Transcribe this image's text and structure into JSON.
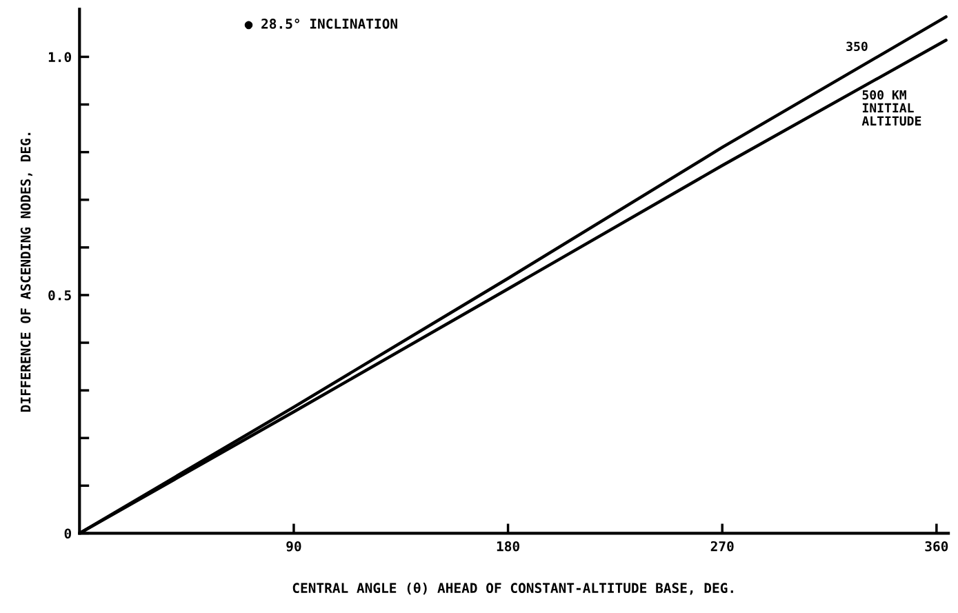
{
  "chart_data": {
    "type": "line",
    "xlabel": "CENTRAL ANGLE (θ) AHEAD OF CONSTANT-ALTITUDE BASE, DEG.",
    "ylabel": "DIFFERENCE OF ASCENDING NODES, DEG.",
    "annotations": [
      "● 28.5° INCLINATION"
    ],
    "series": [
      {
        "name": "350",
        "color": "#000000",
        "x": [
          0,
          90,
          180,
          270,
          364
        ],
        "values": [
          0,
          0.265,
          0.535,
          0.81,
          1.084
        ]
      },
      {
        "name": "500 KM\nINITIAL\nALTITUDE",
        "color": "#000000",
        "x": [
          0,
          90,
          180,
          270,
          364
        ],
        "values": [
          0,
          0.255,
          0.513,
          0.772,
          1.035
        ]
      }
    ],
    "xlim": [
      0,
      365
    ],
    "ylim": [
      0,
      1.1
    ],
    "xticks": [
      90,
      180,
      270,
      360
    ],
    "yticks": [
      {
        "value": 0,
        "label": "0"
      },
      {
        "value": 0.1,
        "label": null
      },
      {
        "value": 0.2,
        "label": null
      },
      {
        "value": 0.3,
        "label": null
      },
      {
        "value": 0.4,
        "label": null
      },
      0.5,
      {
        "value": 0.6,
        "label": null
      },
      {
        "value": 0.7,
        "label": null
      },
      {
        "value": 0.8,
        "label": null
      },
      {
        "value": 0.9,
        "label": null
      },
      {
        "value": 1.0,
        "label": "1.0"
      }
    ],
    "grid": false,
    "legend": false,
    "marker": "none",
    "line_style": "solid"
  }
}
